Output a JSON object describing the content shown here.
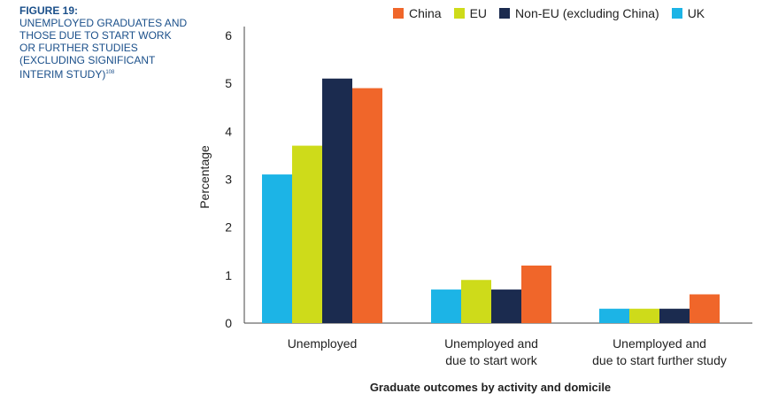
{
  "caption": {
    "label": "FIGURE 19:",
    "title": "UNEMPLOYED GRADUATES AND THOSE DUE TO START WORK OR FURTHER STUDIES (EXCLUDING SIGNIFICANT INTERIM STUDY)",
    "footnote": "108"
  },
  "chart_data": {
    "type": "bar",
    "categories": [
      [
        "Unemployed"
      ],
      [
        "Unemployed and",
        "due to start work"
      ],
      [
        "Unemployed and",
        "due to start further study"
      ]
    ],
    "series": [
      {
        "name": "UK",
        "color": "#1cb4e6",
        "values": [
          3.1,
          0.7,
          0.3
        ]
      },
      {
        "name": "EU",
        "color": "#cedb1a",
        "values": [
          3.7,
          0.9,
          0.3
        ]
      },
      {
        "name": "Non-EU (excluding China)",
        "color": "#1b2b4f",
        "values": [
          5.1,
          0.7,
          0.3
        ]
      },
      {
        "name": "China",
        "color": "#f0662a",
        "values": [
          4.9,
          1.2,
          0.6
        ]
      }
    ],
    "legend_order": [
      "China",
      "EU",
      "Non-EU (excluding China)",
      "UK"
    ],
    "ylabel": "Percentage",
    "xlabel": "Graduate outcomes by activity and domicile",
    "ylim": [
      0,
      6
    ],
    "yticks": [
      0,
      1,
      2,
      3,
      4,
      5,
      6
    ],
    "grid": false,
    "legend_position": "top"
  }
}
